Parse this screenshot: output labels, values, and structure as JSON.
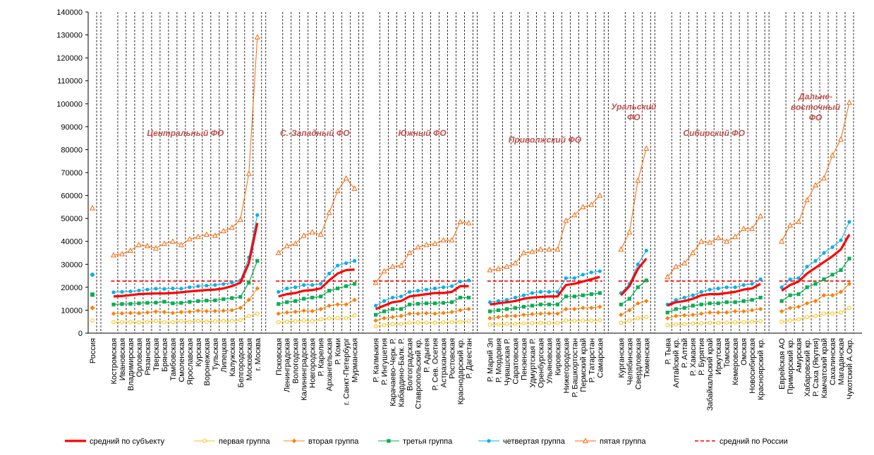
{
  "chart_data": {
    "type": "line",
    "ylim": [
      0,
      140000
    ],
    "yticks": [
      "0",
      "10000",
      "20000",
      "30000",
      "40000",
      "50000",
      "60000",
      "70000",
      "80000",
      "90000",
      "100000",
      "110000",
      "120000",
      "130000",
      "140000"
    ],
    "grid": "vertical dashed separators",
    "legend_position": "bottom",
    "colors": {
      "mean": "#ff0000",
      "g1": "#ffc000",
      "g2": "#ff8000",
      "g3": "#00b050",
      "g4": "#00b0f0",
      "g5": "#ff6600",
      "russia_mean": "#ff0000",
      "fo_label": "#c0504d"
    },
    "russia": {
      "label": "Россия",
      "mean": 22700,
      "g1": 5500,
      "g2": 11000,
      "g3": 16800,
      "g4": 25500,
      "g5": 54500
    },
    "russia_mean": 22700,
    "districts": [
      {
        "name": "Центральный ФО",
        "regions": [
          "Костромская",
          "Ивановская",
          "Владимирская",
          "Орловская",
          "Рязанская",
          "Тверская",
          "Брянская",
          "Тамбовская",
          "Смоленская",
          "Ярославская",
          "Курская",
          "Воронежская",
          "Тульская",
          "Липецкая",
          "Калужская",
          "Белгородская",
          "Московская",
          "г. Москва"
        ],
        "mean": [
          16000,
          16200,
          16600,
          17000,
          17200,
          17300,
          17300,
          17500,
          17800,
          18200,
          18500,
          18800,
          19000,
          19500,
          20500,
          22000,
          30500,
          48000
        ],
        "g1": [
          4800,
          4800,
          4900,
          4700,
          5000,
          5300,
          4800,
          4800,
          5200,
          5000,
          5300,
          5000,
          5200,
          5300,
          5300,
          5700,
          7500,
          8500
        ],
        "g2": [
          8500,
          8600,
          8800,
          8700,
          9000,
          9400,
          9200,
          8800,
          9200,
          9300,
          9800,
          9600,
          9600,
          9800,
          10000,
          11000,
          14500,
          19500
        ],
        "g3": [
          12500,
          12700,
          12800,
          13000,
          13200,
          13300,
          13700,
          13000,
          13200,
          13600,
          14000,
          14200,
          14300,
          14800,
          15300,
          15800,
          22000,
          31500
        ],
        "g4": [
          17800,
          18000,
          18200,
          18600,
          19000,
          19400,
          19300,
          19500,
          19400,
          20000,
          20500,
          20700,
          21000,
          21400,
          22000,
          23000,
          33000,
          51500
        ],
        "g5": [
          34000,
          34500,
          36000,
          38500,
          38000,
          37000,
          39000,
          40000,
          38500,
          41000,
          42000,
          43000,
          42500,
          44500,
          46000,
          49500,
          69500,
          129000
        ]
      },
      {
        "name": "С.-Западный ФО",
        "regions": [
          "Псковская",
          "Ленинградская",
          "Вологодская",
          "Калининградская",
          "Новгородская",
          "Р. Карелия",
          "Архангельская",
          "Р. Коми",
          "г. Санкт-Петербург",
          "Мурманская"
        ],
        "mean": [
          16000,
          17000,
          17500,
          18500,
          18800,
          19500,
          23000,
          26000,
          27500,
          27700
        ],
        "g1": [
          4800,
          5000,
          5200,
          5500,
          5200,
          6000,
          6500,
          6600,
          6500,
          7800
        ],
        "g2": [
          8500,
          9000,
          9300,
          9800,
          9600,
          10500,
          12000,
          12500,
          12500,
          14500
        ],
        "g3": [
          12700,
          13500,
          14000,
          15000,
          15500,
          16000,
          18500,
          19500,
          20500,
          21500
        ],
        "g4": [
          18000,
          19500,
          20000,
          21000,
          21000,
          21500,
          26000,
          29500,
          30500,
          31500
        ],
        "g5": [
          35000,
          38000,
          39000,
          42500,
          44000,
          43000,
          52500,
          62000,
          67500,
          63000
        ]
      },
      {
        "name": "Южный ФО",
        "regions": [
          "Р. Калмыкия",
          "Р. Ингушетия",
          "Карачаево-Черк. Р.",
          "Кабардино-Балк. Р.",
          "Волгоградская",
          "Ставропольский кр.",
          "Р. Адыгея",
          "Р. Сев. Осетия",
          "Астраханская",
          "Ростовская",
          "Краснодарский кр.",
          "Р. Дагестан"
        ],
        "mean": [
          10500,
          12000,
          13500,
          14000,
          16000,
          16500,
          17000,
          17500,
          17500,
          18000,
          20500,
          20500
        ],
        "g1": [
          3000,
          3500,
          4000,
          4000,
          4600,
          4700,
          4600,
          4600,
          4700,
          4800,
          5000,
          5200
        ],
        "g2": [
          5500,
          6500,
          7000,
          7500,
          8500,
          8500,
          8700,
          8500,
          8800,
          9200,
          10000,
          10500
        ],
        "g3": [
          8000,
          9500,
          10500,
          10500,
          12500,
          12800,
          13000,
          13000,
          13200,
          13500,
          15500,
          15500
        ],
        "g4": [
          12000,
          14000,
          15500,
          16000,
          18000,
          18500,
          19000,
          19500,
          20000,
          20500,
          22500,
          23000
        ],
        "g5": [
          22000,
          27000,
          29000,
          29500,
          35000,
          37500,
          38500,
          39000,
          40500,
          40500,
          48500,
          48000
        ]
      },
      {
        "name": "Приволжский ФО",
        "regions": [
          "Р. Марий Эл",
          "Р. Мордовия",
          "Чувашская Р.",
          "Саратовская",
          "Пензенская",
          "Удмуртская Р.",
          "Оренбургская",
          "Ульяновская",
          "Кировская",
          "Нижегородская",
          "Р. Башкортостан",
          "Пермский край",
          "Р. Татарстан",
          "Самарская"
        ],
        "mean": [
          12500,
          13000,
          13500,
          14000,
          15000,
          15500,
          15800,
          16000,
          16000,
          21000,
          21500,
          22500,
          23500,
          24500
        ],
        "g1": [
          3700,
          3800,
          4000,
          4000,
          4300,
          4300,
          4500,
          4400,
          4400,
          5500,
          5400,
          5500,
          5500,
          5600
        ],
        "g2": [
          6500,
          7000,
          7500,
          7500,
          8000,
          8300,
          8500,
          8600,
          8500,
          10500,
          10500,
          11000,
          11000,
          11500
        ],
        "g3": [
          9500,
          10000,
          10500,
          11000,
          11500,
          12000,
          12500,
          12500,
          12500,
          16000,
          16000,
          16500,
          17000,
          17500
        ],
        "g4": [
          13500,
          14000,
          14500,
          15500,
          16500,
          17500,
          18000,
          18000,
          18000,
          24000,
          24000,
          25500,
          26500,
          27000
        ],
        "g5": [
          27500,
          28000,
          29000,
          30500,
          35000,
          35500,
          36500,
          36500,
          36500,
          49000,
          51500,
          55000,
          56000,
          60000
        ]
      },
      {
        "name": "Уральский ФО",
        "regions": [
          "Курганская",
          "Челябинская",
          "Свердловская",
          "Тюменская"
        ],
        "mean": [
          16500,
          20500,
          28000,
          32500
        ],
        "g1": [
          4500,
          5500,
          6500,
          7000
        ],
        "g2": [
          8000,
          10000,
          13000,
          14000
        ],
        "g3": [
          12500,
          15000,
          20000,
          23000
        ],
        "g4": [
          17500,
          21500,
          30000,
          36000
        ],
        "g5": [
          36500,
          44000,
          66500,
          80500
        ]
      },
      {
        "name": "Сибирский ФО",
        "regions": [
          "Р. Тыва",
          "Алтайский кр.",
          "Р. Алтай",
          "Р. Хакасия",
          "Р. Бурятия",
          "Забайкальский край",
          "Иркутская",
          "Томская",
          "Кемеровская",
          "Омская",
          "Новосибирская",
          "Красноярский кр."
        ],
        "mean": [
          12000,
          13500,
          14000,
          15000,
          16500,
          17000,
          17000,
          17500,
          18000,
          19000,
          19500,
          21500
        ],
        "g1": [
          3500,
          3800,
          4000,
          4200,
          4300,
          4500,
          4500,
          4600,
          4700,
          4800,
          5000,
          5200
        ],
        "g2": [
          6500,
          7500,
          7800,
          8000,
          8500,
          9000,
          9000,
          9000,
          9500,
          9500,
          10000,
          10500
        ],
        "g3": [
          9000,
          10500,
          11000,
          12000,
          12500,
          13000,
          13000,
          13500,
          13500,
          14000,
          14500,
          15500
        ],
        "g4": [
          12500,
          14500,
          15500,
          16500,
          18000,
          19000,
          19500,
          20000,
          20000,
          21000,
          21500,
          23500
        ],
        "g5": [
          24500,
          29000,
          30500,
          35000,
          40000,
          39500,
          41500,
          40000,
          42000,
          45500,
          45500,
          51000
        ]
      },
      {
        "name": "Дальне-восточный ФО",
        "label_lines": [
          "Дальне-",
          "восточный",
          "ФО"
        ],
        "regions": [
          "Еврейская АО",
          "Приморский кр.",
          "Амурская",
          "Хабаровский кр.",
          "Р. Саха (Якутия)",
          "Камчатский край",
          "Сахалинская",
          "Магаданская",
          "Чукотский А.Окр."
        ],
        "mean": [
          18500,
          21000,
          22500,
          26000,
          28500,
          31000,
          33500,
          36500,
          43000
        ],
        "g1": [
          5000,
          5500,
          6000,
          7000,
          7500,
          8500,
          8500,
          9000,
          11000
        ],
        "g2": [
          9500,
          11000,
          11500,
          13000,
          14000,
          16500,
          16500,
          18000,
          21500
        ],
        "g3": [
          14000,
          16500,
          17000,
          20000,
          21500,
          23500,
          25500,
          27500,
          32500
        ],
        "g4": [
          20000,
          23500,
          24000,
          29000,
          31500,
          35000,
          37500,
          40500,
          48500
        ],
        "g5": [
          40000,
          47000,
          48500,
          58000,
          64500,
          67500,
          77500,
          84500,
          100500
        ]
      }
    ],
    "legend": [
      {
        "key": "mean",
        "label": "средний по субъекту"
      },
      {
        "key": "g1",
        "label": "первая группа"
      },
      {
        "key": "g2",
        "label": "вторая группа"
      },
      {
        "key": "g3",
        "label": "третья группа"
      },
      {
        "key": "g4",
        "label": "четвертая группа"
      },
      {
        "key": "g5",
        "label": "пятая группа"
      },
      {
        "key": "russia_mean",
        "label": "средний по России"
      }
    ]
  }
}
